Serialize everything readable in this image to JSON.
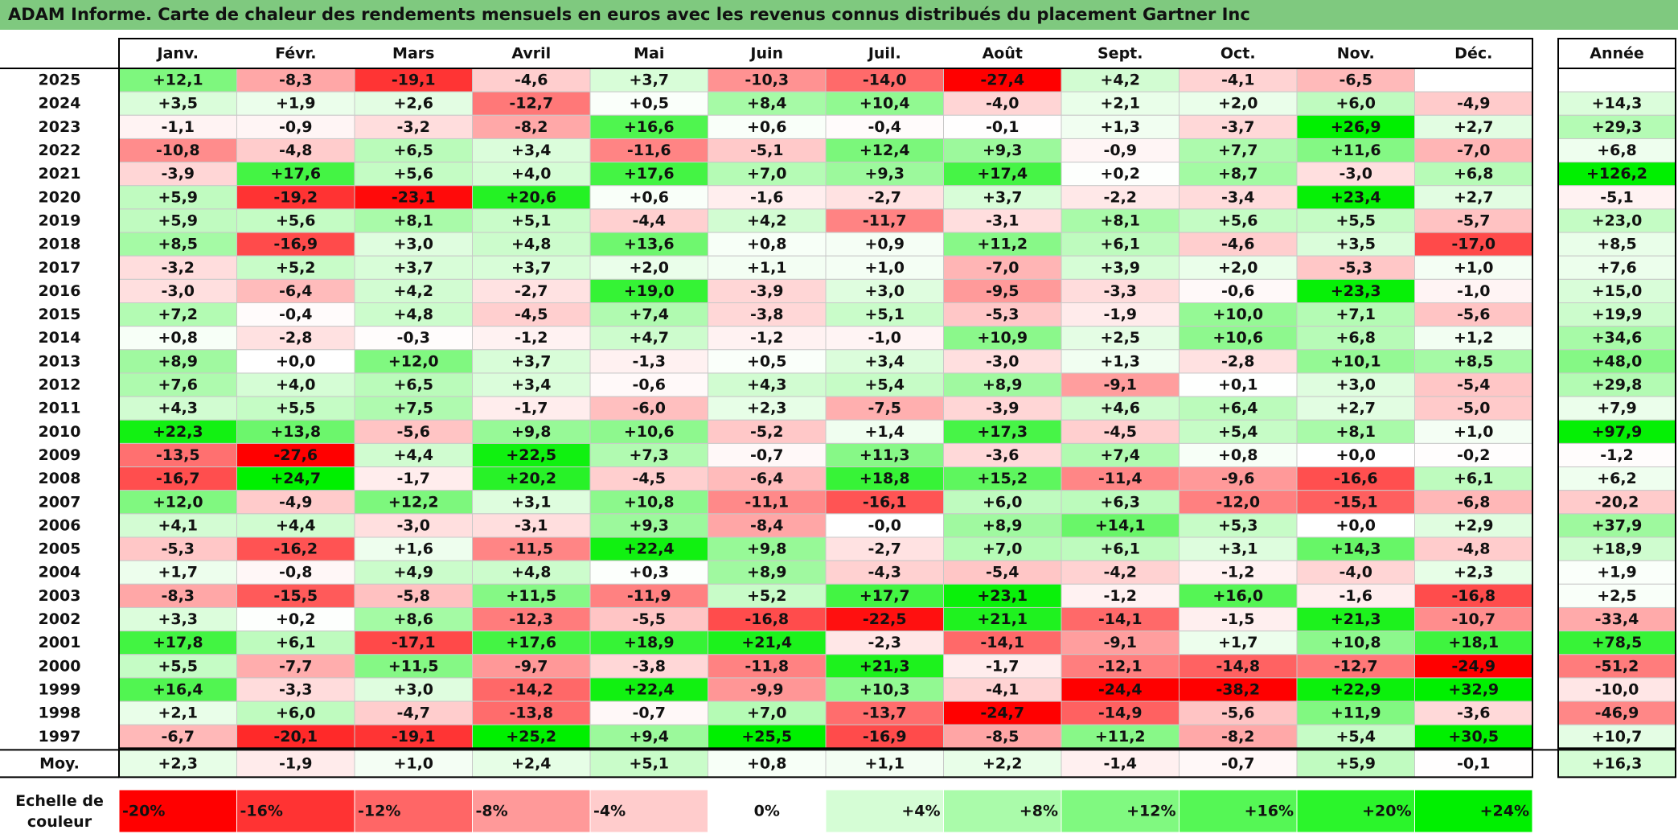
{
  "title": "ADAM Informe. Carte de chaleur des rendements mensuels en euros avec les revenus connus distribués du placement Gartner Inc",
  "chart_data": {
    "type": "heatmap",
    "title": "ADAM Informe. Carte de chaleur des rendements mensuels en euros avec les revenus connus distribués du placement Gartner Inc",
    "months": [
      "Janv.",
      "Févr.",
      "Mars",
      "Avril",
      "Mai",
      "Juin",
      "Juil.",
      "Août",
      "Sept.",
      "Oct.",
      "Nov.",
      "Déc."
    ],
    "year_header": "Année",
    "rows": [
      {
        "year": "2025",
        "values": [
          "+12,1",
          "-8,3",
          "-19,1",
          "-4,6",
          "+3,7",
          "-10,3",
          "-14,0",
          "-27,4",
          "+4,2",
          "-4,1",
          "-6,5",
          ""
        ],
        "annual": ""
      },
      {
        "year": "2024",
        "values": [
          "+3,5",
          "+1,9",
          "+2,6",
          "-12,7",
          "+0,5",
          "+8,4",
          "+10,4",
          "-4,0",
          "+2,1",
          "+2,0",
          "+6,0",
          "-4,9"
        ],
        "annual": "+14,3"
      },
      {
        "year": "2023",
        "values": [
          "-1,1",
          "-0,9",
          "-3,2",
          "-8,2",
          "+16,6",
          "+0,6",
          "-0,4",
          "-0,1",
          "+1,3",
          "-3,7",
          "+26,9",
          "+2,7"
        ],
        "annual": "+29,3"
      },
      {
        "year": "2022",
        "values": [
          "-10,8",
          "-4,8",
          "+6,5",
          "+3,4",
          "-11,6",
          "-5,1",
          "+12,4",
          "+9,3",
          "-0,9",
          "+7,7",
          "+11,6",
          "-7,0"
        ],
        "annual": "+6,8"
      },
      {
        "year": "2021",
        "values": [
          "-3,9",
          "+17,6",
          "+5,6",
          "+4,0",
          "+17,6",
          "+7,0",
          "+9,3",
          "+17,4",
          "+0,2",
          "+8,7",
          "-3,0",
          "+6,8"
        ],
        "annual": "+126,2"
      },
      {
        "year": "2020",
        "values": [
          "+5,9",
          "-19,2",
          "-23,1",
          "+20,6",
          "+0,6",
          "-1,6",
          "-2,7",
          "+3,7",
          "-2,2",
          "-3,4",
          "+23,4",
          "+2,7"
        ],
        "annual": "-5,1"
      },
      {
        "year": "2019",
        "values": [
          "+5,9",
          "+5,6",
          "+8,1",
          "+5,1",
          "-4,4",
          "+4,2",
          "-11,7",
          "-3,1",
          "+8,1",
          "+5,6",
          "+5,5",
          "-5,7"
        ],
        "annual": "+23,0"
      },
      {
        "year": "2018",
        "values": [
          "+8,5",
          "-16,9",
          "+3,0",
          "+4,8",
          "+13,6",
          "+0,8",
          "+0,9",
          "+11,2",
          "+6,1",
          "-4,6",
          "+3,5",
          "-17,0"
        ],
        "annual": "+8,5"
      },
      {
        "year": "2017",
        "values": [
          "-3,2",
          "+5,2",
          "+3,7",
          "+3,7",
          "+2,0",
          "+1,1",
          "+1,0",
          "-7,0",
          "+3,9",
          "+2,0",
          "-5,3",
          "+1,0"
        ],
        "annual": "+7,6"
      },
      {
        "year": "2016",
        "values": [
          "-3,0",
          "-6,4",
          "+4,2",
          "-2,7",
          "+19,0",
          "-3,9",
          "+3,0",
          "-9,5",
          "-3,3",
          "-0,6",
          "+23,3",
          "-1,0"
        ],
        "annual": "+15,0"
      },
      {
        "year": "2015",
        "values": [
          "+7,2",
          "-0,4",
          "+4,8",
          "-4,5",
          "+7,4",
          "-3,8",
          "+5,1",
          "-5,3",
          "-1,9",
          "+10,0",
          "+7,1",
          "-5,6"
        ],
        "annual": "+19,9"
      },
      {
        "year": "2014",
        "values": [
          "+0,8",
          "-2,8",
          "-0,3",
          "-1,2",
          "+4,7",
          "-1,2",
          "-1,0",
          "+10,9",
          "+2,5",
          "+10,6",
          "+6,8",
          "+1,2"
        ],
        "annual": "+34,6"
      },
      {
        "year": "2013",
        "values": [
          "+8,9",
          "+0,0",
          "+12,0",
          "+3,7",
          "-1,3",
          "+0,5",
          "+3,4",
          "-3,0",
          "+1,3",
          "-2,8",
          "+10,1",
          "+8,5"
        ],
        "annual": "+48,0"
      },
      {
        "year": "2012",
        "values": [
          "+7,6",
          "+4,0",
          "+6,5",
          "+3,4",
          "-0,6",
          "+4,3",
          "+5,4",
          "+8,9",
          "-9,1",
          "+0,1",
          "+3,0",
          "-5,4"
        ],
        "annual": "+29,8"
      },
      {
        "year": "2011",
        "values": [
          "+4,3",
          "+5,5",
          "+7,5",
          "-1,7",
          "-6,0",
          "+2,3",
          "-7,5",
          "-3,9",
          "+4,6",
          "+6,4",
          "+2,7",
          "-5,0"
        ],
        "annual": "+7,9"
      },
      {
        "year": "2010",
        "values": [
          "+22,3",
          "+13,8",
          "-5,6",
          "+9,8",
          "+10,6",
          "-5,2",
          "+1,4",
          "+17,3",
          "-4,5",
          "+5,4",
          "+8,1",
          "+1,0"
        ],
        "annual": "+97,9"
      },
      {
        "year": "2009",
        "values": [
          "-13,5",
          "-27,6",
          "+4,4",
          "+22,5",
          "+7,3",
          "-0,7",
          "+11,3",
          "-3,6",
          "+7,4",
          "+0,8",
          "+0,0",
          "-0,2"
        ],
        "annual": "-1,2"
      },
      {
        "year": "2008",
        "values": [
          "-16,7",
          "+24,7",
          "-1,7",
          "+20,2",
          "-4,5",
          "-6,4",
          "+18,8",
          "+15,2",
          "-11,4",
          "-9,6",
          "-16,6",
          "+6,1"
        ],
        "annual": "+6,2"
      },
      {
        "year": "2007",
        "values": [
          "+12,0",
          "-4,9",
          "+12,2",
          "+3,1",
          "+10,8",
          "-11,1",
          "-16,1",
          "+6,0",
          "+6,3",
          "-12,0",
          "-15,1",
          "-6,8"
        ],
        "annual": "-20,2"
      },
      {
        "year": "2006",
        "values": [
          "+4,1",
          "+4,4",
          "-3,0",
          "-3,1",
          "+9,3",
          "-8,4",
          "-0,0",
          "+8,9",
          "+14,1",
          "+5,3",
          "+0,0",
          "+2,9"
        ],
        "annual": "+37,9"
      },
      {
        "year": "2005",
        "values": [
          "-5,3",
          "-16,2",
          "+1,6",
          "-11,5",
          "+22,4",
          "+9,8",
          "-2,7",
          "+7,0",
          "+6,1",
          "+3,1",
          "+14,3",
          "-4,8"
        ],
        "annual": "+18,9"
      },
      {
        "year": "2004",
        "values": [
          "+1,7",
          "-0,8",
          "+4,9",
          "+4,8",
          "+0,3",
          "+8,9",
          "-4,3",
          "-5,4",
          "-4,2",
          "-1,2",
          "-4,0",
          "+2,3"
        ],
        "annual": "+1,9"
      },
      {
        "year": "2003",
        "values": [
          "-8,3",
          "-15,5",
          "-5,8",
          "+11,5",
          "-11,9",
          "+5,2",
          "+17,7",
          "+23,1",
          "-1,2",
          "+16,0",
          "-1,6",
          "-16,8"
        ],
        "annual": "+2,5"
      },
      {
        "year": "2002",
        "values": [
          "+3,3",
          "+0,2",
          "+8,6",
          "-12,3",
          "-5,5",
          "-16,8",
          "-22,5",
          "+21,1",
          "-14,1",
          "-1,5",
          "+21,3",
          "-10,7"
        ],
        "annual": "-33,4"
      },
      {
        "year": "2001",
        "values": [
          "+17,8",
          "+6,1",
          "-17,1",
          "+17,6",
          "+18,9",
          "+21,4",
          "-2,3",
          "-14,1",
          "-9,1",
          "+1,7",
          "+10,8",
          "+18,1"
        ],
        "annual": "+78,5"
      },
      {
        "year": "2000",
        "values": [
          "+5,5",
          "-7,7",
          "+11,5",
          "-9,7",
          "-3,8",
          "-11,8",
          "+21,3",
          "-1,7",
          "-12,1",
          "-14,8",
          "-12,7",
          "-24,9"
        ],
        "annual": "-51,2"
      },
      {
        "year": "1999",
        "values": [
          "+16,4",
          "-3,3",
          "+3,0",
          "-14,2",
          "+22,4",
          "-9,9",
          "+10,3",
          "-4,1",
          "-24,4",
          "-38,2",
          "+22,9",
          "+32,9"
        ],
        "annual": "-10,0"
      },
      {
        "year": "1998",
        "values": [
          "+2,1",
          "+6,0",
          "-4,7",
          "-13,8",
          "-0,7",
          "+7,0",
          "-13,7",
          "-24,7",
          "-14,9",
          "-5,6",
          "+11,9",
          "-3,6"
        ],
        "annual": "-46,9"
      },
      {
        "year": "1997",
        "values": [
          "-6,7",
          "-20,1",
          "-19,1",
          "+25,2",
          "+9,4",
          "+25,5",
          "-16,9",
          "-8,5",
          "+11,2",
          "-8,2",
          "+5,4",
          "+30,5"
        ],
        "annual": "+10,7"
      }
    ],
    "average": {
      "label": "Moy.",
      "values": [
        "+2,3",
        "-1,9",
        "+1,0",
        "+2,4",
        "+5,1",
        "+0,8",
        "+1,1",
        "+2,2",
        "-1,4",
        "-0,7",
        "+5,9",
        "-0,1"
      ],
      "annual": "+16,3"
    },
    "color_scale": {
      "label_line1": "Echelle de",
      "label_line2": "couleur",
      "steps": [
        {
          "label": "-20%",
          "value": -20,
          "color": "#ff0000"
        },
        {
          "label": "-16%",
          "value": -16,
          "color": "#ff3333"
        },
        {
          "label": "-12%",
          "value": -12,
          "color": "#ff6666"
        },
        {
          "label": "-8%",
          "value": -8,
          "color": "#ff9999"
        },
        {
          "label": "-4%",
          "value": -4,
          "color": "#ffcccc"
        },
        {
          "label": "0%",
          "value": 0,
          "color": "#ffffff"
        },
        {
          "label": "+4%",
          "value": 4,
          "color": "#d5fdd5"
        },
        {
          "label": "+8%",
          "value": 8,
          "color": "#aafbaa"
        },
        {
          "label": "+12%",
          "value": 12,
          "color": "#80f980"
        },
        {
          "label": "+16%",
          "value": 16,
          "color": "#55f755"
        },
        {
          "label": "+20%",
          "value": 20,
          "color": "#2bf52b"
        },
        {
          "label": "+24%",
          "value": 24,
          "color": "#00f000"
        }
      ]
    },
    "annual_color_range": 100
  }
}
